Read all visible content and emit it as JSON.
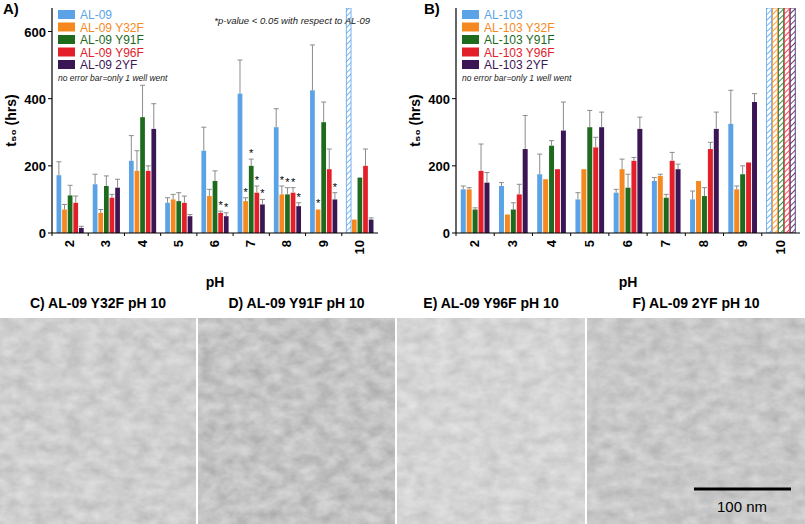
{
  "chart_data": [
    {
      "type": "bar",
      "panel_label": "A)",
      "y_label": "t₅₀ (hrs)",
      "x_label": "pH",
      "categories": [
        "2",
        "3",
        "4",
        "5",
        "6",
        "7",
        "8",
        "9",
        "10"
      ],
      "ylim": [
        0,
        670
      ],
      "yticks": [
        0,
        200,
        400,
        600
      ],
      "grid": false,
      "legend": "upper left",
      "annotation": "*p-value < 0.05 with respect to AL-09",
      "significance_symbol": "*",
      "note": "no error bar=only 1 well went",
      "series": [
        {
          "name": "AL-09",
          "color": "#5ba3e6",
          "values": [
            172,
            145,
            215,
            90,
            245,
            415,
            315,
            425,
            null
          ],
          "errors": [
            40,
            30,
            75,
            15,
            70,
            100,
            55,
            135,
            null
          ],
          "hatched": [
            false,
            false,
            false,
            false,
            false,
            false,
            false,
            false,
            true
          ]
        },
        {
          "name": "AL-09 Y32F",
          "color": "#f5891f",
          "values": [
            70,
            60,
            185,
            100,
            110,
            95,
            115,
            70,
            40
          ],
          "errors": [
            15,
            10,
            60,
            15,
            20,
            10,
            25,
            null,
            null
          ],
          "significant": [
            false,
            false,
            false,
            false,
            false,
            true,
            true,
            true,
            false
          ]
        },
        {
          "name": "AL-09 Y91F",
          "color": "#1e6b1e",
          "values": [
            112,
            140,
            345,
            95,
            155,
            200,
            115,
            330,
            165
          ],
          "errors": [
            30,
            30,
            95,
            25,
            30,
            20,
            20,
            60,
            null
          ],
          "significant": [
            false,
            false,
            false,
            false,
            false,
            true,
            true,
            false,
            false
          ]
        },
        {
          "name": "AL-09 Y96F",
          "color": "#e3202a",
          "values": [
            90,
            105,
            185,
            90,
            60,
            120,
            120,
            190,
            200
          ],
          "errors": [
            20,
            10,
            15,
            20,
            5,
            20,
            15,
            60,
            50
          ],
          "significant": [
            false,
            false,
            false,
            false,
            true,
            true,
            true,
            false,
            false
          ]
        },
        {
          "name": "AL-09 2YF",
          "color": "#3b1654",
          "values": [
            15,
            135,
            310,
            50,
            50,
            85,
            80,
            100,
            40
          ],
          "errors": [
            5,
            25,
            75,
            5,
            10,
            15,
            10,
            20,
            5
          ],
          "significant": [
            false,
            false,
            false,
            false,
            true,
            true,
            true,
            true,
            false
          ]
        }
      ]
    },
    {
      "type": "bar",
      "panel_label": "B)",
      "y_label": "t₅₀ (hrs)",
      "x_label": "pH",
      "categories": [
        "2",
        "3",
        "4",
        "5",
        "6",
        "7",
        "8",
        "9",
        "10"
      ],
      "ylim": [
        0,
        670
      ],
      "yticks": [
        0,
        200,
        400
      ],
      "grid": false,
      "legend": "upper left",
      "note": "no error bar=only 1 well went",
      "series": [
        {
          "name": "AL-103",
          "color": "#5ba3e6",
          "values": [
            130,
            140,
            175,
            100,
            120,
            155,
            100,
            325,
            null
          ],
          "errors": [
            10,
            10,
            60,
            20,
            10,
            10,
            25,
            100,
            null
          ],
          "hatched": [
            false,
            false,
            false,
            false,
            false,
            false,
            false,
            false,
            true
          ]
        },
        {
          "name": "AL-103 Y32F",
          "color": "#f5891f",
          "values": [
            130,
            55,
            160,
            190,
            190,
            170,
            155,
            130,
            null
          ],
          "errors": [
            5,
            null,
            null,
            null,
            30,
            5,
            null,
            10,
            null
          ],
          "hatched": [
            false,
            false,
            false,
            false,
            false,
            false,
            false,
            false,
            true
          ]
        },
        {
          "name": "AL-103 Y91F",
          "color": "#1e6b1e",
          "values": [
            70,
            70,
            260,
            315,
            135,
            105,
            110,
            175,
            null
          ],
          "errors": [
            5,
            20,
            15,
            50,
            40,
            10,
            25,
            25,
            null
          ],
          "hatched": [
            false,
            false,
            false,
            false,
            false,
            false,
            false,
            false,
            true
          ]
        },
        {
          "name": "AL-103 Y96F",
          "color": "#e3202a",
          "values": [
            185,
            115,
            190,
            255,
            215,
            215,
            250,
            210,
            null
          ],
          "errors": [
            80,
            30,
            null,
            30,
            10,
            25,
            20,
            null,
            null
          ],
          "hatched": [
            false,
            false,
            false,
            false,
            false,
            false,
            false,
            false,
            true
          ]
        },
        {
          "name": "AL-103 2YF",
          "color": "#3b1654",
          "values": [
            150,
            250,
            305,
            315,
            310,
            190,
            310,
            390,
            null
          ],
          "errors": [
            30,
            100,
            85,
            45,
            35,
            15,
            50,
            25,
            null
          ],
          "hatched": [
            false,
            false,
            false,
            false,
            false,
            false,
            false,
            false,
            true
          ]
        }
      ]
    }
  ],
  "images": [
    {
      "label": "C) AL-09 Y32F pH 10"
    },
    {
      "label": "D) AL-09 Y91F pH 10"
    },
    {
      "label": "E) AL-09 Y96F pH 10"
    },
    {
      "label": "F) AL-09 2YF pH 10"
    }
  ],
  "scale_bar": "100 nm"
}
